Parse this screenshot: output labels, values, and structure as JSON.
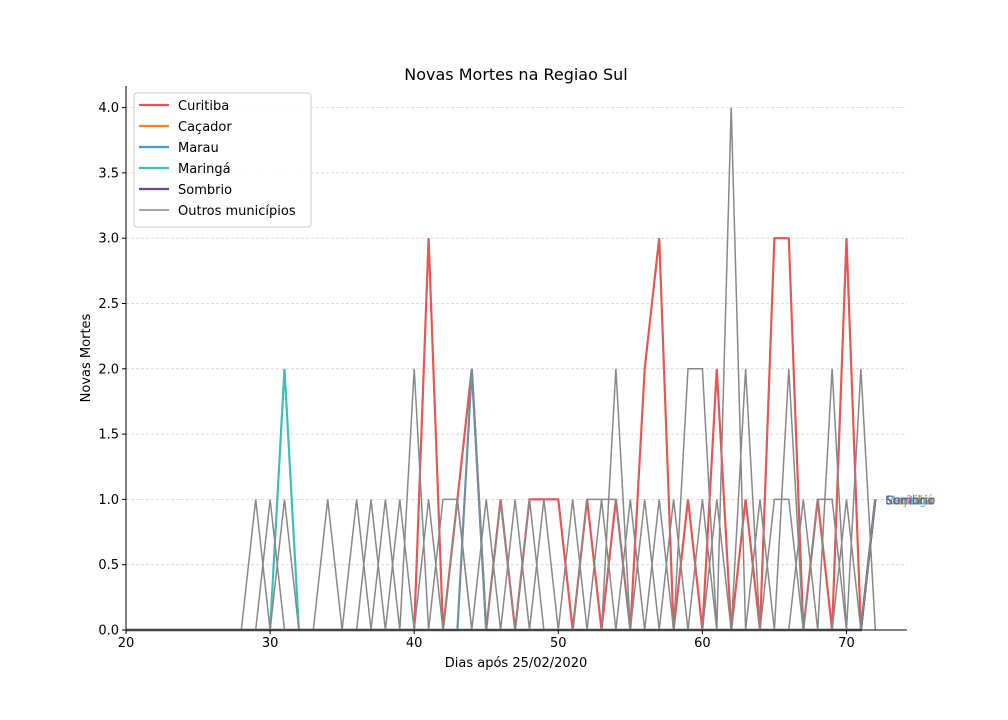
{
  "chart_data": {
    "type": "line",
    "title": "Novas Mortes na Regiao Sul",
    "xlabel": "Dias após 25/02/2020",
    "ylabel": "Novas Mortes",
    "xlim": [
      20,
      74.2
    ],
    "ylim": [
      0,
      4.15
    ],
    "xticks": [
      20,
      30,
      40,
      50,
      60,
      70
    ],
    "xtick_labels": [
      "20",
      "30",
      "40",
      "50",
      "60",
      "70"
    ],
    "yticks": [
      0,
      0.5,
      1,
      1.5,
      2,
      2.5,
      3,
      3.5,
      4
    ],
    "ytick_labels": [
      "0.0",
      "0.5",
      "1.0",
      "1.5",
      "2.0",
      "2.5",
      "3.0",
      "3.5",
      "4.0"
    ],
    "grid": "horizontal",
    "legend_position": "top-left",
    "series": [
      {
        "name": "Curitiba",
        "color": "#e45756",
        "x": [
          20,
          40,
          41,
          42,
          43,
          44,
          45,
          46,
          47,
          48,
          49,
          50,
          51,
          52,
          53,
          54,
          55,
          56,
          57,
          58,
          59,
          60,
          61,
          62,
          63,
          64,
          65,
          66,
          67,
          68,
          69,
          70,
          71,
          72
        ],
        "y": [
          0,
          0,
          3,
          0,
          1,
          2,
          0,
          1,
          0,
          1,
          1,
          1,
          0,
          1,
          0,
          1,
          0,
          2,
          3,
          0,
          1,
          0,
          2,
          0,
          1,
          0,
          3,
          3,
          0,
          1,
          0,
          3,
          0,
          1
        ]
      },
      {
        "name": "Caçador",
        "color": "#f58518",
        "x": [
          20,
          71,
          72
        ],
        "y": [
          0,
          0,
          1
        ]
      },
      {
        "name": "Marau",
        "color": "#3a9ad9",
        "x": [
          20,
          43,
          44,
          45,
          71,
          72
        ],
        "y": [
          0,
          0,
          2,
          0,
          0,
          1
        ]
      },
      {
        "name": "Maringá",
        "color": "#3dbfb8",
        "x": [
          20,
          30,
          31,
          32,
          71,
          72
        ],
        "y": [
          0,
          0,
          2,
          0,
          0,
          1
        ]
      },
      {
        "name": "Sombrio",
        "color": "#6a4a8c",
        "x": [
          20,
          71,
          72
        ],
        "y": [
          0,
          0,
          1
        ]
      },
      {
        "name": "Outros municípios",
        "color": "#888888",
        "others": true,
        "lines": [
          {
            "x": [
              20,
              28,
              29,
              30
            ],
            "y": [
              0,
              0,
              1,
              0
            ]
          },
          {
            "x": [
              20,
              29,
              30,
              31
            ],
            "y": [
              0,
              0,
              1,
              0
            ]
          },
          {
            "x": [
              20,
              30,
              31,
              32
            ],
            "y": [
              0,
              0,
              1,
              0
            ]
          },
          {
            "x": [
              20,
              33,
              34,
              35
            ],
            "y": [
              0,
              0,
              1,
              0
            ]
          },
          {
            "x": [
              20,
              35,
              36,
              37
            ],
            "y": [
              0,
              0,
              1,
              0
            ]
          },
          {
            "x": [
              20,
              36,
              37,
              38
            ],
            "y": [
              0,
              0,
              1,
              0
            ]
          },
          {
            "x": [
              20,
              37,
              38,
              39
            ],
            "y": [
              0,
              0,
              1,
              0
            ]
          },
          {
            "x": [
              20,
              38,
              39,
              40
            ],
            "y": [
              0,
              0,
              1,
              0
            ]
          },
          {
            "x": [
              20,
              39,
              40,
              41
            ],
            "y": [
              0,
              0,
              2,
              0
            ]
          },
          {
            "x": [
              20,
              40,
              41,
              42
            ],
            "y": [
              0,
              0,
              1,
              0
            ]
          },
          {
            "x": [
              20,
              41,
              42,
              43,
              44
            ],
            "y": [
              0,
              0,
              1,
              1,
              0
            ]
          },
          {
            "x": [
              20,
              42,
              43,
              44
            ],
            "y": [
              0,
              0,
              1,
              0
            ]
          },
          {
            "x": [
              20,
              43,
              44,
              45
            ],
            "y": [
              0,
              0,
              2,
              0
            ]
          },
          {
            "x": [
              20,
              44,
              45,
              46
            ],
            "y": [
              0,
              0,
              1,
              0
            ]
          },
          {
            "x": [
              20,
              45,
              46,
              47
            ],
            "y": [
              0,
              0,
              1,
              0
            ]
          },
          {
            "x": [
              20,
              46,
              47,
              48
            ],
            "y": [
              0,
              0,
              1,
              0
            ]
          },
          {
            "x": [
              20,
              47,
              48,
              49
            ],
            "y": [
              0,
              0,
              1,
              0
            ]
          },
          {
            "x": [
              20,
              48,
              49,
              50
            ],
            "y": [
              0,
              0,
              1,
              0
            ]
          },
          {
            "x": [
              20,
              50,
              51,
              52
            ],
            "y": [
              0,
              0,
              1,
              0
            ]
          },
          {
            "x": [
              20,
              51,
              52,
              53,
              54,
              55
            ],
            "y": [
              0,
              0,
              1,
              1,
              1,
              0
            ]
          },
          {
            "x": [
              20,
              52,
              53,
              54
            ],
            "y": [
              0,
              0,
              1,
              0
            ]
          },
          {
            "x": [
              20,
              53,
              54,
              55
            ],
            "y": [
              0,
              0,
              2,
              0
            ]
          },
          {
            "x": [
              20,
              54,
              55,
              56
            ],
            "y": [
              0,
              0,
              1,
              0
            ]
          },
          {
            "x": [
              20,
              55,
              56,
              57
            ],
            "y": [
              0,
              0,
              1,
              0
            ]
          },
          {
            "x": [
              20,
              56,
              57,
              58
            ],
            "y": [
              0,
              0,
              1,
              0
            ]
          },
          {
            "x": [
              20,
              57,
              58,
              59
            ],
            "y": [
              0,
              0,
              1,
              0
            ]
          },
          {
            "x": [
              20,
              58,
              59,
              60,
              61
            ],
            "y": [
              0,
              0,
              2,
              2,
              0
            ]
          },
          {
            "x": [
              20,
              59,
              60,
              61
            ],
            "y": [
              0,
              0,
              1,
              0
            ]
          },
          {
            "x": [
              20,
              60,
              61,
              62
            ],
            "y": [
              0,
              0,
              1,
              0
            ]
          },
          {
            "x": [
              20,
              61,
              62,
              63
            ],
            "y": [
              0,
              0,
              4,
              0
            ]
          },
          {
            "x": [
              20,
              62,
              63,
              64
            ],
            "y": [
              0,
              0,
              2,
              0
            ]
          },
          {
            "x": [
              20,
              63,
              64,
              65
            ],
            "y": [
              0,
              0,
              1,
              0
            ]
          },
          {
            "x": [
              20,
              64,
              65,
              66,
              67
            ],
            "y": [
              0,
              0,
              1,
              1,
              0
            ]
          },
          {
            "x": [
              20,
              65,
              66,
              67
            ],
            "y": [
              0,
              0,
              2,
              0
            ]
          },
          {
            "x": [
              20,
              66,
              67,
              68
            ],
            "y": [
              0,
              0,
              1,
              0
            ]
          },
          {
            "x": [
              20,
              67,
              68,
              69,
              70
            ],
            "y": [
              0,
              0,
              1,
              1,
              0
            ]
          },
          {
            "x": [
              20,
              68,
              69,
              70
            ],
            "y": [
              0,
              0,
              2,
              0
            ]
          },
          {
            "x": [
              20,
              69,
              70,
              71
            ],
            "y": [
              0,
              0,
              1,
              0
            ]
          },
          {
            "x": [
              20,
              70,
              71,
              72
            ],
            "y": [
              0,
              0,
              2,
              0
            ]
          },
          {
            "x": [
              20,
              71,
              72
            ],
            "y": [
              0,
              0,
              1
            ]
          }
        ]
      }
    ],
    "end_labels": [
      "Curitiba",
      "Caçador",
      "Marau",
      "Maringá",
      "Sombrio"
    ]
  }
}
